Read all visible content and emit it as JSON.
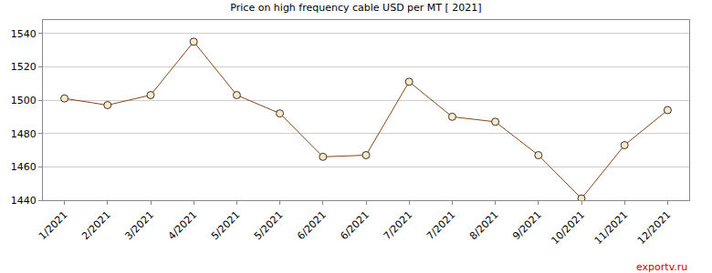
{
  "chart_data": {
    "type": "line",
    "title": "Price on high frequency cable USD per MT [ 2021]",
    "categories": [
      "1/2021",
      "2/2021",
      "3/2021",
      "4/2021",
      "5/2021",
      "5/2021",
      "6/2021",
      "6/2021",
      "7/2021",
      "7/2021",
      "8/2021",
      "9/2021",
      "10/2021",
      "11/2021",
      "12/2021"
    ],
    "values": [
      1501,
      1497,
      1503,
      1535,
      1503,
      1492,
      1466,
      1467,
      1511,
      1490,
      1487,
      1467,
      1441,
      1473,
      1494
    ],
    "color": "#8b4513",
    "marker": "circle",
    "ylim": [
      1440,
      1548
    ],
    "yticks": [
      1440,
      1460,
      1480,
      1500,
      1520,
      1540
    ],
    "grid": true,
    "annotations": [
      "exportv.ru"
    ]
  }
}
